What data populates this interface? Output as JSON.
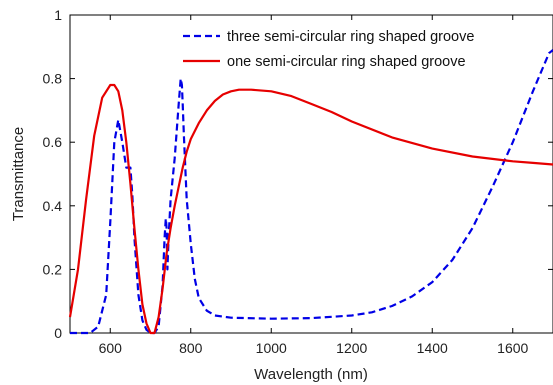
{
  "chart_data": {
    "type": "line",
    "title": "",
    "xlabel": "Wavelength (nm)",
    "ylabel": "Transmittance",
    "xlim": [
      500,
      1700
    ],
    "ylim": [
      0,
      1
    ],
    "grid": false,
    "legend_position": "top-right",
    "x_ticks": [
      600,
      800,
      1000,
      1200,
      1400,
      1600
    ],
    "x_tick_labels": [
      "600",
      "800",
      "1000",
      "1200",
      "1400",
      "1600"
    ],
    "y_ticks": [
      0,
      0.2,
      0.4,
      0.6,
      0.8,
      1
    ],
    "y_tick_labels": [
      "0",
      "0.2",
      "0.4",
      "0.6",
      "0.8",
      "1"
    ],
    "series": [
      {
        "name": "three semi-circular ring shaped groove",
        "color": "#0000e6",
        "dash": "dashed",
        "x": [
          500,
          550,
          570,
          590,
          600,
          610,
          620,
          630,
          640,
          650,
          655,
          660,
          670,
          680,
          690,
          700,
          710,
          720,
          730,
          735,
          738,
          740,
          742,
          745,
          750,
          760,
          770,
          775,
          778,
          780,
          783,
          790,
          800,
          810,
          820,
          840,
          860,
          900,
          1000,
          1100,
          1200,
          1250,
          1300,
          1350,
          1400,
          1450,
          1500,
          1550,
          1600,
          1650,
          1690,
          1700
        ],
        "y": [
          0,
          0,
          0.02,
          0.12,
          0.35,
          0.6,
          0.67,
          0.6,
          0.52,
          0.52,
          0.43,
          0.3,
          0.12,
          0.04,
          0.01,
          0.0,
          0.0,
          0.02,
          0.15,
          0.3,
          0.36,
          0.33,
          0.2,
          0.3,
          0.42,
          0.55,
          0.72,
          0.8,
          0.78,
          0.72,
          0.62,
          0.42,
          0.28,
          0.17,
          0.11,
          0.07,
          0.055,
          0.048,
          0.045,
          0.047,
          0.055,
          0.065,
          0.085,
          0.115,
          0.16,
          0.23,
          0.33,
          0.46,
          0.6,
          0.76,
          0.88,
          0.89
        ]
      },
      {
        "name": "one semi-circular ring shaped groove",
        "color": "#e60000",
        "dash": "solid",
        "x": [
          500,
          520,
          540,
          560,
          580,
          600,
          610,
          620,
          630,
          640,
          650,
          660,
          670,
          680,
          690,
          700,
          710,
          720,
          730,
          740,
          750,
          760,
          770,
          780,
          790,
          800,
          820,
          840,
          860,
          880,
          900,
          920,
          950,
          1000,
          1050,
          1100,
          1150,
          1200,
          1300,
          1400,
          1500,
          1600,
          1650,
          1700
        ],
        "y": [
          0.05,
          0.2,
          0.42,
          0.62,
          0.74,
          0.78,
          0.78,
          0.76,
          0.7,
          0.6,
          0.47,
          0.33,
          0.2,
          0.09,
          0.03,
          0.0,
          0.0,
          0.05,
          0.14,
          0.25,
          0.33,
          0.4,
          0.46,
          0.52,
          0.57,
          0.61,
          0.66,
          0.7,
          0.73,
          0.75,
          0.76,
          0.765,
          0.765,
          0.76,
          0.745,
          0.72,
          0.695,
          0.665,
          0.615,
          0.58,
          0.555,
          0.54,
          0.535,
          0.53
        ]
      }
    ]
  }
}
